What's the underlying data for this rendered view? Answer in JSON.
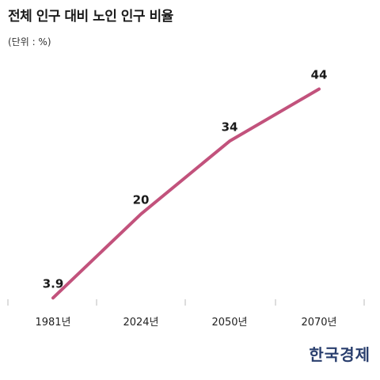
{
  "title": "전체 인구 대비 노인 인구 비율",
  "unit_note": "(단위 : %)",
  "logo": "한국경제",
  "chart_data": {
    "type": "line",
    "title": "전체 인구 대비 노인 인구 비율",
    "categories": [
      "1981년",
      "2024년",
      "2050년",
      "2070년"
    ],
    "series": [
      {
        "values": [
          3.9,
          20,
          34,
          44
        ],
        "color": "#c2527c"
      }
    ],
    "data_labels": [
      "3.9",
      "20",
      "34",
      "44"
    ],
    "xlabel": "",
    "ylabel": "",
    "ylim": [
      0,
      50
    ],
    "grid": false,
    "legend": "none"
  }
}
